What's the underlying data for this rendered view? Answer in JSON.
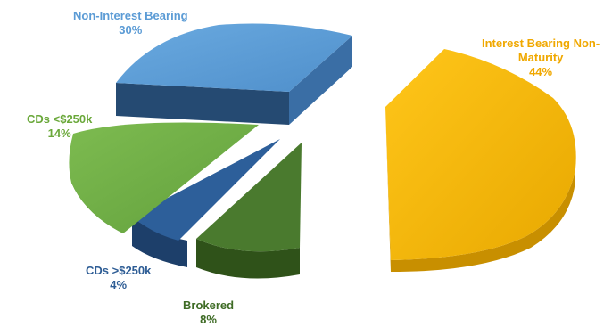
{
  "chart_data": {
    "type": "pie",
    "style": "3d-exploded",
    "slices": [
      {
        "name": "Interest Bearing Non-Maturity",
        "name_line1": "Interest Bearing Non-",
        "name_line2": "Maturity",
        "value": 44,
        "value_label": "44%",
        "color": "#F5B800"
      },
      {
        "name": "Brokered",
        "value": 8,
        "value_label": "8%",
        "color": "#4A7A2E"
      },
      {
        "name": "CDs >$250k",
        "value": 4,
        "value_label": "4%",
        "color": "#2D5F9A"
      },
      {
        "name": "CDs <$250k",
        "value": 14,
        "value_label": "14%",
        "color": "#70AD47"
      },
      {
        "name": "Non-Interest Bearing",
        "value": 30,
        "value_label": "30%",
        "color": "#5B9BD5"
      }
    ],
    "label_colors": {
      "Interest Bearing Non-Maturity": "#F0A800",
      "Brokered": "#3E6B25",
      "CDs >$250k": "#2E5D95",
      "CDs <$250k": "#6AA83A",
      "Non-Interest Bearing": "#5B9BD5"
    },
    "legend": "none"
  }
}
